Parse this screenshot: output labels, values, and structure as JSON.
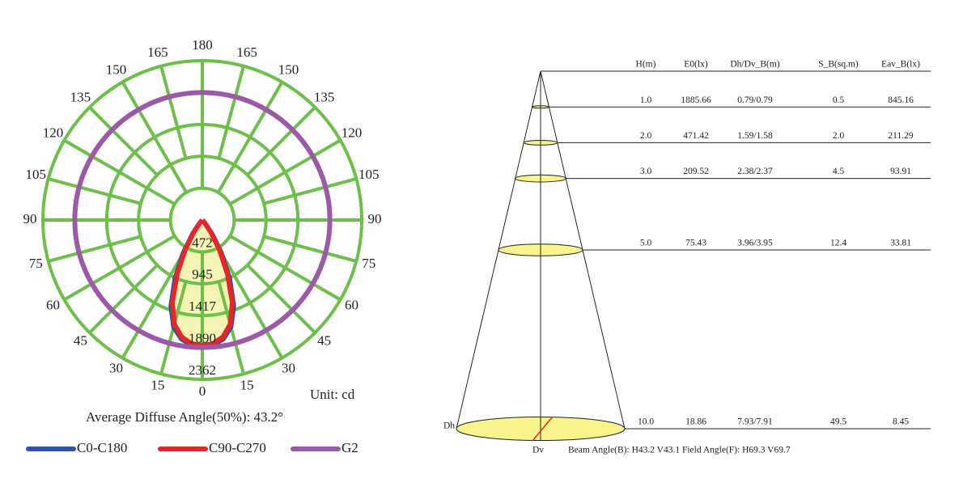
{
  "chart_data": [
    {
      "type": "polar",
      "rlim": [
        0,
        2362
      ],
      "rticks": [
        472,
        945,
        1417,
        1890,
        2362
      ],
      "angle_ticks": [
        0,
        15,
        30,
        45,
        60,
        75,
        90,
        105,
        120,
        135,
        150,
        165,
        180
      ],
      "grid_color": "#6cc04a",
      "fill_color": "#f4f4b4",
      "unit_label": "Unit: cd",
      "caption": "Average Diffuse Angle(50%): 43.2°",
      "series": [
        {
          "name": "C0-C180",
          "color": "#2a55a8",
          "angles": [
            0,
            5,
            10,
            15,
            20,
            25,
            30,
            35,
            40,
            45
          ],
          "values": [
            1880,
            1860,
            1790,
            1640,
            1360,
            960,
            560,
            250,
            70,
            0
          ]
        },
        {
          "name": "C90-C270",
          "color": "#e8262a",
          "angles": [
            0,
            5,
            10,
            15,
            20,
            25,
            30,
            35,
            40,
            45
          ],
          "values": [
            1860,
            1840,
            1760,
            1600,
            1300,
            880,
            500,
            220,
            60,
            0
          ]
        },
        {
          "name": "G2",
          "color": "#9b59a8",
          "angles": [
            0,
            15,
            30,
            45,
            60,
            75,
            90,
            105,
            120,
            135,
            150,
            165,
            180
          ],
          "values": [
            1890,
            1890,
            1890,
            1890,
            1890,
            1890,
            1890,
            1890,
            1890,
            1890,
            1890,
            1890,
            1890
          ]
        }
      ]
    },
    {
      "type": "cone",
      "headers": [
        "H(m)",
        "E0(lx)",
        "Dh/Dv_B(m)",
        "S_B(sq.m)",
        "Eav_B(lx)"
      ],
      "rows": [
        [
          "1.0",
          "1885.66",
          "0.79/0.79",
          "0.5",
          "845.16"
        ],
        [
          "2.0",
          "471.42",
          "1.59/1.58",
          "2.0",
          "211.29"
        ],
        [
          "3.0",
          "209.52",
          "2.38/2.37",
          "4.5",
          "93.91"
        ],
        [
          "5.0",
          "75.43",
          "3.96/3.95",
          "12.4",
          "33.81"
        ],
        [
          "10.0",
          "18.86",
          "7.93/7.91",
          "49.5",
          "8.45"
        ]
      ],
      "dh_label": "Dh",
      "dv_label": "Dv",
      "angle_note": "Beam Angle(B): H43.2 V43.1 Field Angle(F): H69.3 V69.7"
    }
  ]
}
